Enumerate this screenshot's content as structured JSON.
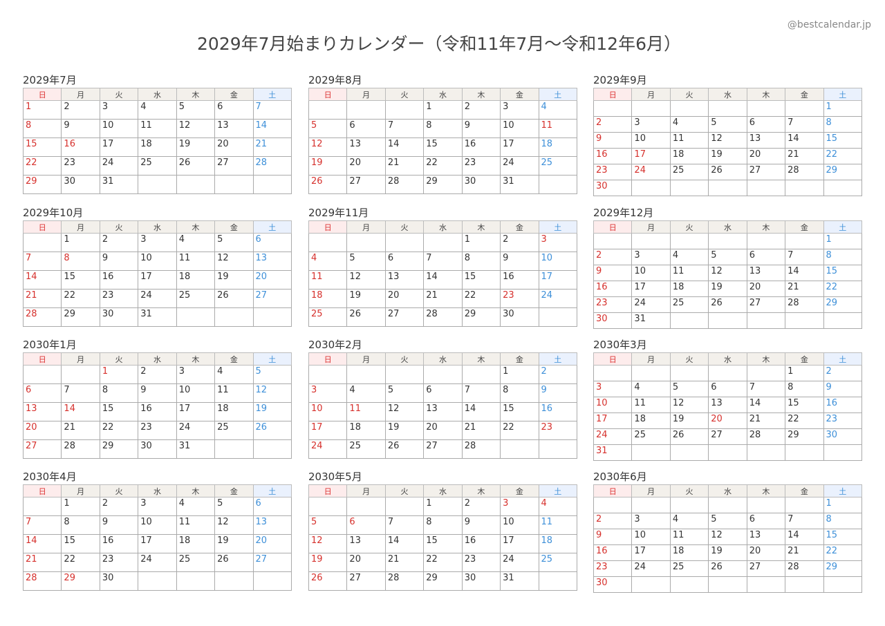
{
  "title": "2029年7月始まりカレンダー（令和11年7月〜令和12年6月）",
  "credit": "@bestcalendar.jp",
  "weekdays": [
    "日",
    "月",
    "火",
    "水",
    "木",
    "金",
    "土"
  ],
  "colors": {
    "holiday": "#d6302c",
    "saturday": "#3d8fd8",
    "sunday_header_bg": "#fdecec",
    "saturday_header_bg": "#eaf1fd",
    "header_bg": "#f3f0eb"
  },
  "months": [
    {
      "label": "2029年7月",
      "first_weekday": 0,
      "days_in_month": 31,
      "holidays": [
        16
      ]
    },
    {
      "label": "2029年8月",
      "first_weekday": 3,
      "days_in_month": 31,
      "holidays": [
        11
      ]
    },
    {
      "label": "2029年9月",
      "first_weekday": 6,
      "days_in_month": 30,
      "holidays": [
        17,
        24
      ]
    },
    {
      "label": "2029年10月",
      "first_weekday": 1,
      "days_in_month": 31,
      "holidays": [
        8
      ]
    },
    {
      "label": "2029年11月",
      "first_weekday": 4,
      "days_in_month": 30,
      "holidays": [
        3,
        23
      ]
    },
    {
      "label": "2029年12月",
      "first_weekday": 6,
      "days_in_month": 31,
      "holidays": []
    },
    {
      "label": "2030年1月",
      "first_weekday": 2,
      "days_in_month": 31,
      "holidays": [
        1,
        14
      ]
    },
    {
      "label": "2030年2月",
      "first_weekday": 5,
      "days_in_month": 28,
      "holidays": [
        11,
        23
      ]
    },
    {
      "label": "2030年3月",
      "first_weekday": 5,
      "days_in_month": 31,
      "holidays": [
        20
      ]
    },
    {
      "label": "2030年4月",
      "first_weekday": 1,
      "days_in_month": 30,
      "holidays": [
        29
      ]
    },
    {
      "label": "2030年5月",
      "first_weekday": 3,
      "days_in_month": 31,
      "holidays": [
        3,
        4,
        6
      ]
    },
    {
      "label": "2030年6月",
      "first_weekday": 6,
      "days_in_month": 30,
      "holidays": []
    }
  ]
}
